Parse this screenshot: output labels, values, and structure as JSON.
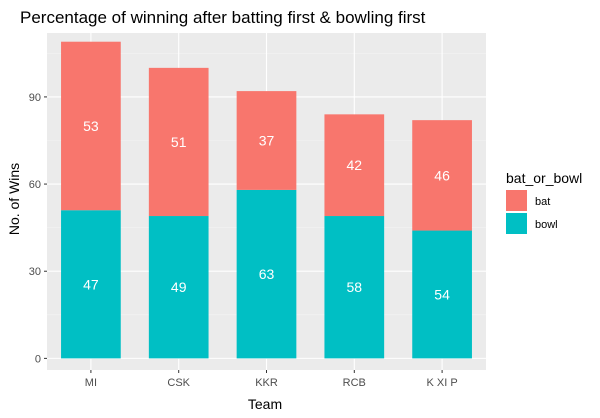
{
  "chart_data": {
    "type": "bar",
    "stacked": true,
    "title": "Percentage of winning after batting first & bowling first",
    "xlabel": "Team",
    "ylabel": "No. of Wins",
    "categories": [
      "MI",
      "CSK",
      "KKR",
      "RCB",
      "K XI P"
    ],
    "series": [
      {
        "name": "bowl",
        "values": [
          51,
          49,
          58,
          49,
          44
        ],
        "labels": [
          "47",
          "49",
          "63",
          "58",
          "54"
        ],
        "color": "#00BFC4"
      },
      {
        "name": "bat",
        "values": [
          58,
          51,
          34,
          35,
          38
        ],
        "labels": [
          "53",
          "51",
          "37",
          "42",
          "46"
        ],
        "color": "#F8766D"
      }
    ],
    "ylim": [
      -4,
      112
    ],
    "yticks": [
      0,
      30,
      60,
      90
    ],
    "grid": true,
    "legend": {
      "title": "bat_or_bowl",
      "items": [
        "bat",
        "bowl"
      ],
      "position": "right"
    }
  },
  "colors": {
    "panel": "#EBEBEB",
    "grid_major": "#FFFFFF",
    "grid_minor": "#F4F4F4"
  }
}
